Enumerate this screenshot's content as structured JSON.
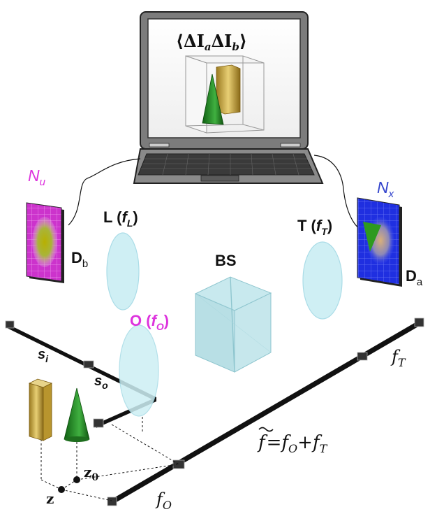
{
  "laptop": {
    "formula_main": "⟨ΔI",
    "sub_a": "a",
    "formula_mid": "ΔI",
    "sub_b": "b",
    "formula_end": "⟩"
  },
  "detectors": {
    "left": {
      "count_main": "N",
      "count_sub": "u",
      "name_main": "D",
      "name_sub": "b"
    },
    "right": {
      "count_main": "N",
      "count_sub": "x",
      "name_main": "D",
      "name_sub": "a"
    }
  },
  "lenses": {
    "L": {
      "name": "L (",
      "f_main": "f",
      "f_sub": "L",
      "close": ")"
    },
    "T": {
      "name": "T (",
      "f_main": "f",
      "f_sub": "T",
      "close": ")"
    },
    "O": {
      "name": "O (",
      "f_main": "f",
      "f_sub": "O",
      "close": ")"
    }
  },
  "beam_splitter": {
    "label": "BS"
  },
  "rails": {
    "s_i": {
      "main": "s",
      "sub": "i"
    },
    "s_o": {
      "main": "s",
      "sub": "o"
    },
    "f_T": {
      "main": "f",
      "sub": "T"
    },
    "f_O": {
      "main": "f",
      "sub": "O"
    },
    "equation": {
      "lhs": "f",
      "eq": "=f",
      "sub1": "O",
      "plus": "+f",
      "sub2": "T"
    }
  },
  "positions": {
    "z": "z",
    "z0_main": "z",
    "z0_sub": "0"
  },
  "colors": {
    "magenta_label": "#dd33dd",
    "blue_label": "#3344cc",
    "lens_fill": "#cdeff4",
    "lens_stroke": "#a6dbe6",
    "cube_fill": "#bfe3e8",
    "rail": "#111111",
    "laptop_body": "#8a8a8a",
    "prism_green": "#2f9a2f",
    "prism_gold": "#c9a943",
    "detector_left": "#cc33cc",
    "detector_right": "#2233dd"
  }
}
